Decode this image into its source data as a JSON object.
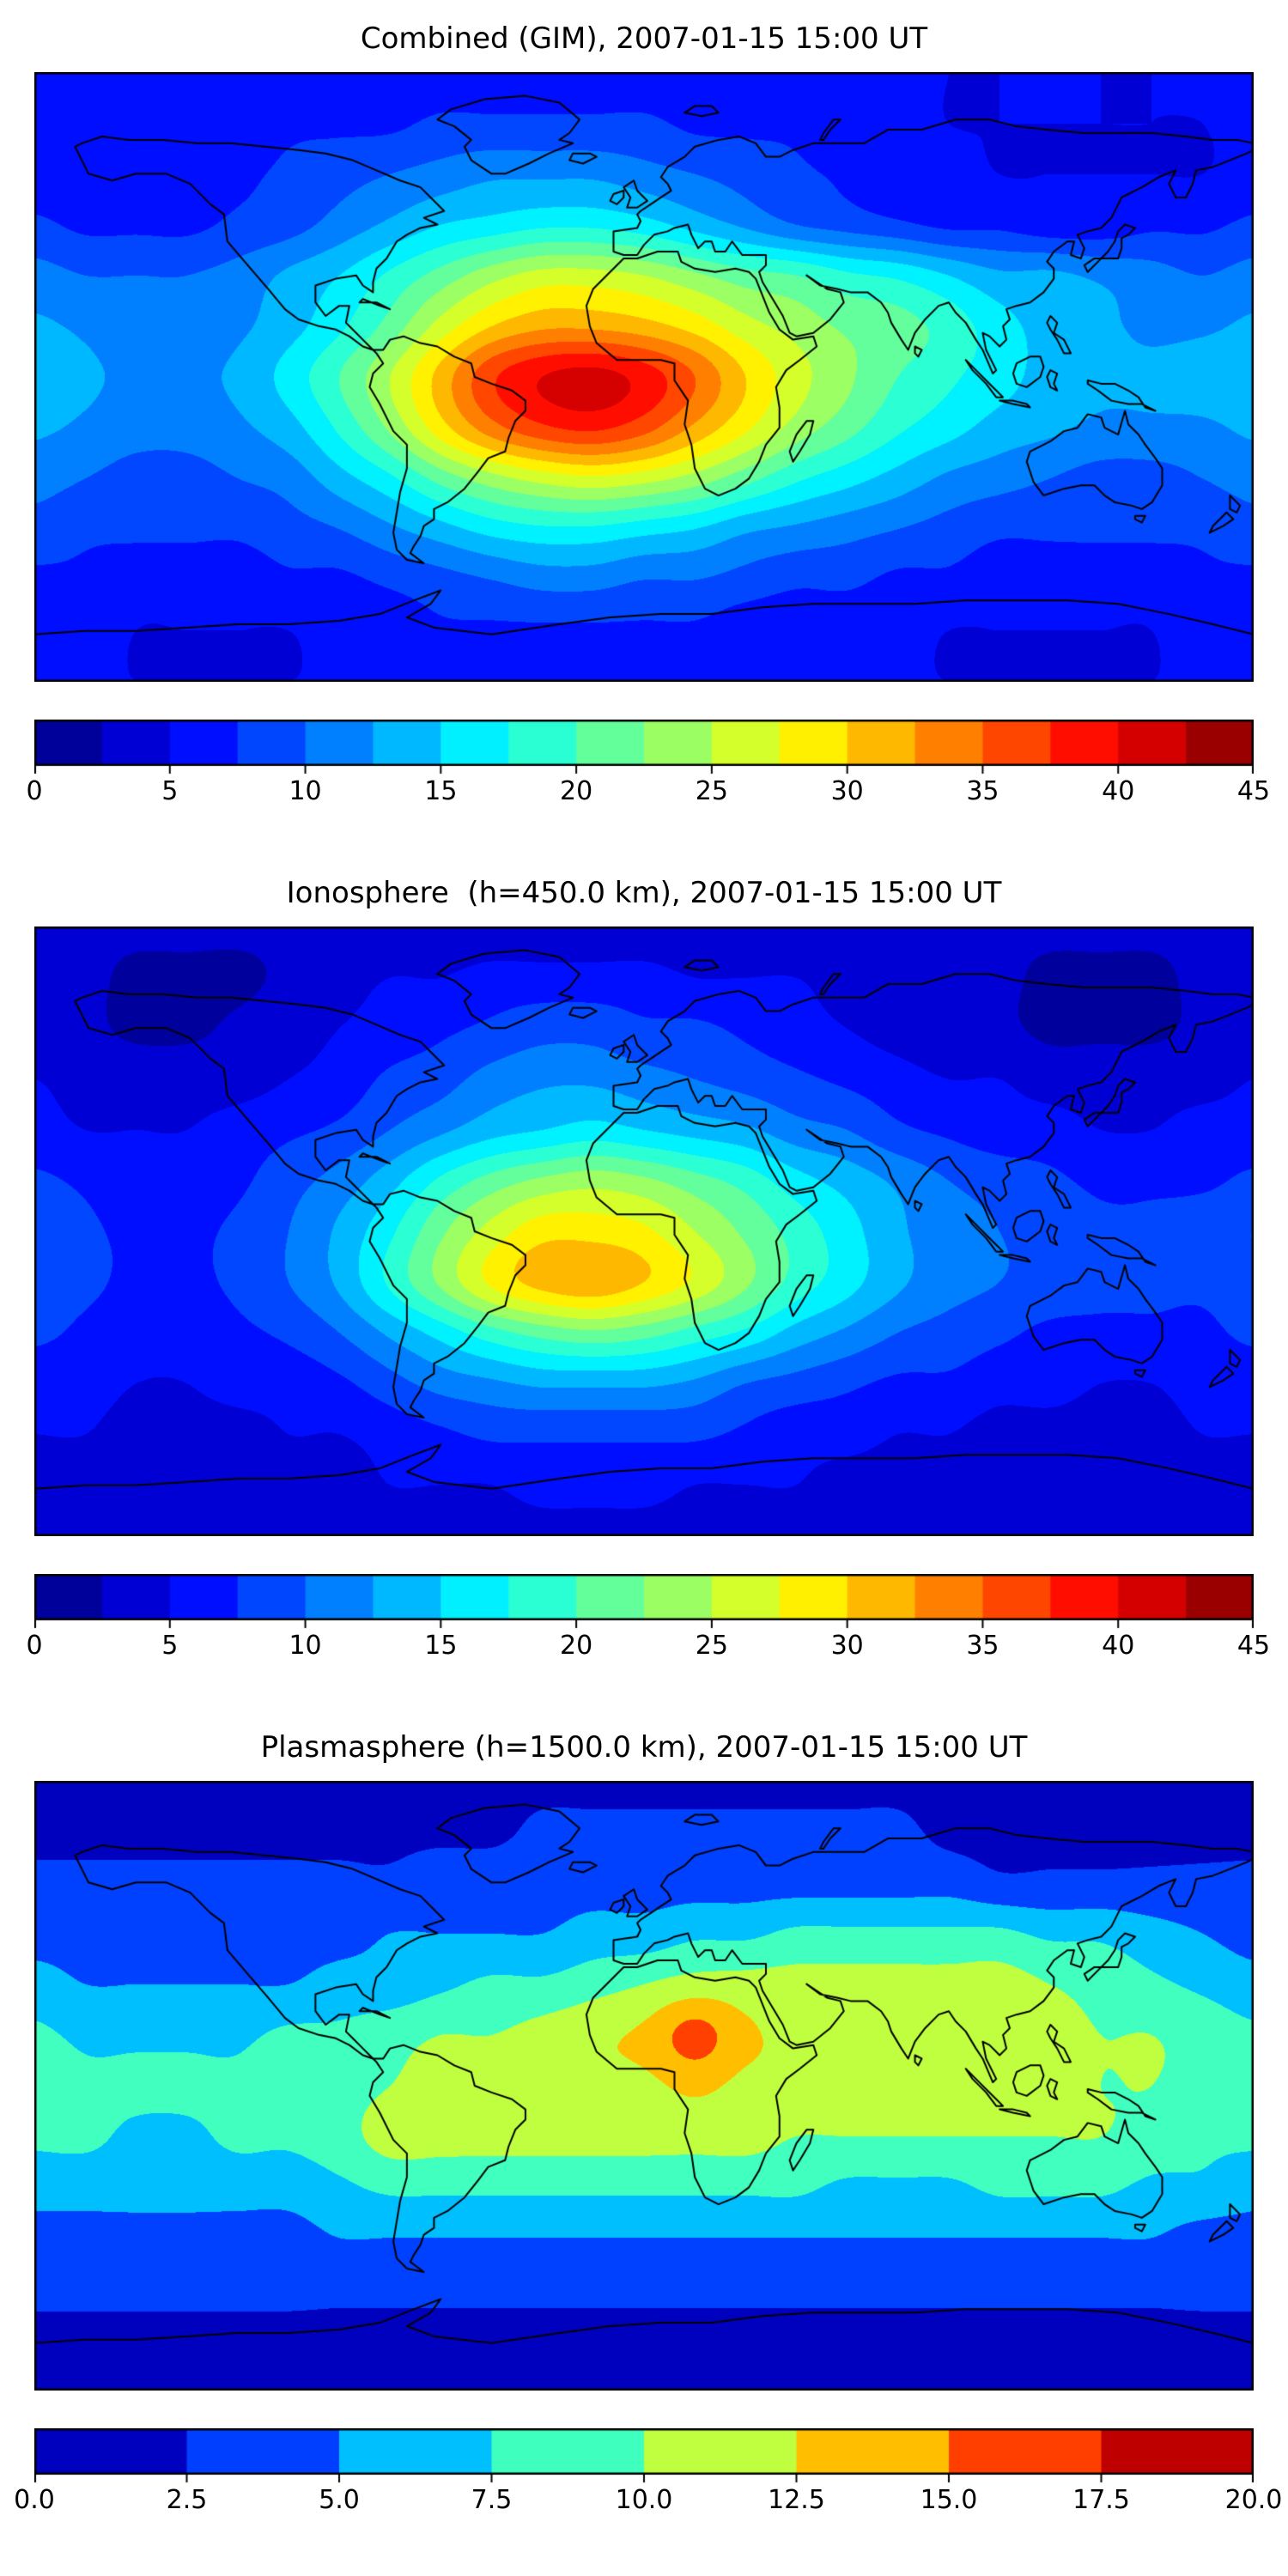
{
  "figure": {
    "background": "#ffffff",
    "coastline_color": "#000000"
  },
  "chart_data": [
    {
      "type": "heatmap",
      "title": "Combined (GIM), 2007-01-15 15:00 UT",
      "colormap": "jet",
      "coastline_color": "#000000",
      "levels": {
        "min": 0,
        "max": 45,
        "count": 18
      },
      "colorbar": {
        "tick_values": [
          0,
          5,
          10,
          15,
          20,
          25,
          30,
          35,
          40,
          45
        ],
        "tick_labels": [
          "0",
          "5",
          "10",
          "15",
          "20",
          "25",
          "30",
          "35",
          "40",
          "45"
        ]
      },
      "grid": {
        "lon_min": -180,
        "lon_max": 180,
        "lon_step": 15,
        "lat_min": -90,
        "lat_max": 90,
        "lat_step": 15
      },
      "values": [
        [
          6,
          6,
          6,
          6,
          6,
          6,
          6,
          6,
          6,
          6,
          6,
          6,
          6,
          6,
          6,
          6,
          6,
          6,
          5,
          5,
          5,
          5,
          5,
          6,
          6
        ],
        [
          6,
          6,
          6,
          6,
          6,
          7,
          7,
          7,
          8,
          8,
          8,
          8,
          8,
          7,
          7,
          7,
          6,
          6,
          5,
          5,
          5,
          5,
          5,
          5,
          6
        ],
        [
          6,
          6,
          6,
          7,
          7,
          8,
          9,
          10,
          11,
          12,
          12,
          12,
          11,
          10,
          9,
          8,
          7,
          6,
          6,
          5,
          5,
          5,
          5,
          5,
          6
        ],
        [
          8,
          7,
          7,
          7,
          8,
          9,
          11,
          13,
          15,
          16,
          17,
          17,
          16,
          14,
          12,
          10,
          9,
          8,
          7,
          7,
          6,
          6,
          7,
          7,
          8
        ],
        [
          11,
          10,
          10,
          10,
          11,
          13,
          15,
          18,
          21,
          24,
          26,
          26,
          25,
          23,
          21,
          20,
          18,
          17,
          15,
          13,
          13,
          12,
          11,
          10,
          11
        ],
        [
          13,
          12,
          11,
          11,
          12,
          14,
          17,
          21,
          26,
          30,
          32,
          32,
          31,
          29,
          26,
          24,
          22,
          21,
          19,
          16,
          14,
          13,
          12,
          12,
          13
        ],
        [
          15,
          13,
          12,
          12,
          13,
          16,
          20,
          25,
          31,
          37,
          40,
          41,
          39,
          35,
          30,
          26,
          23,
          20,
          18,
          16,
          14,
          13,
          13,
          14,
          15
        ],
        [
          13,
          12,
          11,
          11,
          12,
          14,
          18,
          23,
          29,
          34,
          37,
          38,
          36,
          32,
          28,
          24,
          21,
          18,
          16,
          14,
          13,
          12,
          12,
          12,
          13
        ],
        [
          11,
          10,
          9,
          9,
          10,
          11,
          14,
          17,
          21,
          24,
          26,
          27,
          26,
          24,
          21,
          18,
          16,
          14,
          12,
          11,
          10,
          9,
          9,
          10,
          11
        ],
        [
          9,
          8,
          8,
          8,
          8,
          9,
          10,
          12,
          14,
          16,
          17,
          17,
          16,
          15,
          13,
          12,
          11,
          10,
          9,
          8,
          8,
          8,
          8,
          8,
          9
        ],
        [
          7,
          7,
          6,
          6,
          6,
          7,
          7,
          8,
          9,
          10,
          11,
          11,
          10,
          10,
          9,
          8,
          8,
          7,
          7,
          6,
          6,
          6,
          6,
          7,
          7
        ],
        [
          6,
          6,
          5,
          5,
          5,
          5,
          6,
          6,
          7,
          7,
          7,
          7,
          7,
          7,
          6,
          6,
          6,
          6,
          5,
          5,
          5,
          5,
          5,
          6,
          6
        ],
        [
          5,
          5,
          5,
          5,
          5,
          5,
          5,
          5,
          5,
          5,
          5,
          5,
          5,
          5,
          5,
          5,
          5,
          5,
          5,
          5,
          5,
          5,
          5,
          5,
          5
        ]
      ]
    },
    {
      "type": "heatmap",
      "title": "Ionosphere  (h=450.0 km), 2007-01-15 15:00 UT",
      "colormap": "jet",
      "coastline_color": "#000000",
      "levels": {
        "min": 0,
        "max": 45,
        "count": 18
      },
      "colorbar": {
        "tick_values": [
          0,
          5,
          10,
          15,
          20,
          25,
          30,
          35,
          40,
          45
        ],
        "tick_labels": [
          "0",
          "5",
          "10",
          "15",
          "20",
          "25",
          "30",
          "35",
          "40",
          "45"
        ]
      },
      "grid": {
        "lon_min": -180,
        "lon_max": 180,
        "lon_step": 15,
        "lat_min": -90,
        "lat_max": 90,
        "lat_step": 15
      },
      "values": [
        [
          3,
          3,
          3,
          3,
          3,
          3,
          3,
          3,
          3,
          3,
          3,
          3,
          3,
          3,
          3,
          3,
          3,
          3,
          3,
          3,
          3,
          3,
          3,
          3,
          3
        ],
        [
          3,
          3,
          2,
          2,
          2,
          3,
          4,
          5,
          5,
          6,
          6,
          6,
          6,
          5,
          5,
          5,
          4,
          4,
          3,
          3,
          2,
          2,
          2,
          3,
          3
        ],
        [
          3,
          3,
          2,
          2,
          3,
          4,
          5,
          6,
          7,
          8,
          9,
          9,
          8,
          8,
          7,
          6,
          5,
          4,
          3,
          3,
          2,
          2,
          2,
          3,
          3
        ],
        [
          5,
          4,
          4,
          4,
          4,
          5,
          6,
          8,
          9,
          11,
          12,
          12,
          11,
          10,
          9,
          8,
          7,
          6,
          5,
          5,
          4,
          4,
          4,
          4,
          5
        ],
        [
          6,
          5,
          5,
          5,
          6,
          7,
          8,
          10,
          12,
          14,
          15,
          16,
          15,
          14,
          13,
          11,
          10,
          8,
          7,
          6,
          6,
          5,
          5,
          6,
          6
        ],
        [
          8,
          7,
          6,
          6,
          7,
          9,
          11,
          14,
          18,
          21,
          23,
          24,
          23,
          21,
          19,
          16,
          14,
          12,
          10,
          9,
          8,
          7,
          7,
          7,
          8
        ],
        [
          10,
          8,
          7,
          7,
          8,
          10,
          13,
          17,
          22,
          26,
          29,
          29,
          28,
          25,
          22,
          19,
          16,
          13,
          11,
          10,
          9,
          8,
          8,
          9,
          10
        ],
        [
          9,
          8,
          7,
          7,
          8,
          10,
          13,
          18,
          23,
          28,
          31,
          32,
          30,
          27,
          23,
          19,
          16,
          13,
          11,
          10,
          9,
          8,
          8,
          8,
          9
        ],
        [
          8,
          7,
          6,
          6,
          7,
          8,
          10,
          13,
          16,
          19,
          21,
          22,
          21,
          19,
          17,
          14,
          12,
          10,
          9,
          8,
          7,
          7,
          7,
          7,
          8
        ],
        [
          6,
          6,
          5,
          5,
          6,
          6,
          7,
          9,
          11,
          12,
          13,
          13,
          13,
          12,
          10,
          9,
          8,
          7,
          7,
          6,
          6,
          5,
          5,
          6,
          6
        ],
        [
          5,
          5,
          4,
          4,
          4,
          5,
          5,
          6,
          7,
          8,
          8,
          8,
          8,
          8,
          7,
          6,
          6,
          5,
          5,
          4,
          4,
          4,
          4,
          5,
          5
        ],
        [
          4,
          4,
          4,
          4,
          4,
          4,
          4,
          5,
          5,
          5,
          6,
          6,
          6,
          5,
          5,
          5,
          4,
          4,
          4,
          4,
          4,
          4,
          4,
          4,
          4
        ],
        [
          4,
          4,
          4,
          4,
          4,
          4,
          4,
          4,
          4,
          4,
          4,
          4,
          4,
          4,
          4,
          4,
          4,
          4,
          4,
          4,
          4,
          4,
          4,
          4,
          4
        ]
      ]
    },
    {
      "type": "heatmap",
      "title": "Plasmasphere (h=1500.0 km), 2007-01-15 15:00 UT",
      "colormap": "jet",
      "coastline_color": "#000000",
      "levels": {
        "min": 0,
        "max": 20,
        "count": 8
      },
      "colorbar": {
        "tick_values": [
          0,
          2.5,
          5,
          7.5,
          10,
          12.5,
          15,
          17.5,
          20
        ],
        "tick_labels": [
          "0.0",
          "2.5",
          "5.0",
          "7.5",
          "10.0",
          "12.5",
          "15.0",
          "17.5",
          "20.0"
        ]
      },
      "grid": {
        "lon_min": -180,
        "lon_max": 180,
        "lon_step": 15,
        "lat_min": -90,
        "lat_max": 90,
        "lat_step": 15
      },
      "values": [
        [
          2,
          2,
          2,
          2,
          2,
          2,
          2,
          2,
          2,
          2,
          2,
          2,
          2,
          2,
          2,
          2,
          2,
          2,
          2,
          2,
          2,
          2,
          2,
          2,
          2
        ],
        [
          2,
          2,
          2,
          2,
          2,
          2,
          2,
          2,
          2,
          2,
          3,
          3,
          3,
          3,
          3,
          3,
          3,
          3,
          2,
          2,
          2,
          2,
          2,
          2,
          2
        ],
        [
          3,
          3,
          3,
          3,
          3,
          3,
          3,
          3,
          4,
          4,
          4,
          4,
          4,
          4,
          4,
          4,
          4,
          4,
          4,
          3,
          3,
          3,
          3,
          3,
          3
        ],
        [
          4,
          4,
          4,
          4,
          4,
          4,
          4,
          5,
          5,
          5,
          5,
          6,
          6,
          7,
          7,
          8,
          8,
          8,
          8,
          8,
          7,
          7,
          6,
          5,
          4
        ],
        [
          6,
          5,
          5,
          5,
          5,
          5,
          6,
          6,
          7,
          8,
          8,
          9,
          10,
          11,
          11,
          11,
          11,
          11,
          11,
          11,
          10,
          9,
          8,
          7,
          6
        ],
        [
          8,
          7,
          7,
          7,
          7,
          8,
          8,
          9,
          10,
          10,
          11,
          12,
          13,
          16,
          13,
          12,
          12,
          12,
          12,
          11,
          11,
          10,
          10,
          9,
          8
        ],
        [
          9,
          8,
          8,
          8,
          8,
          9,
          9,
          10,
          11,
          12,
          12,
          12,
          12,
          13,
          12,
          12,
          12,
          12,
          12,
          11,
          11,
          10,
          10,
          9,
          9
        ],
        [
          8,
          8,
          7,
          7,
          8,
          8,
          9,
          11,
          11,
          11,
          11,
          11,
          11,
          11,
          11,
          10,
          10,
          10,
          10,
          10,
          10,
          10,
          9,
          8,
          8
        ],
        [
          6,
          6,
          6,
          6,
          6,
          6,
          7,
          8,
          8,
          8,
          8,
          8,
          8,
          8,
          8,
          8,
          7,
          7,
          7,
          8,
          8,
          8,
          7,
          7,
          6
        ],
        [
          4,
          4,
          4,
          4,
          4,
          4,
          5,
          5,
          5,
          5,
          5,
          5,
          5,
          5,
          5,
          5,
          5,
          5,
          5,
          5,
          5,
          5,
          5,
          4,
          4
        ],
        [
          3,
          3,
          3,
          3,
          3,
          3,
          3,
          3,
          3,
          3,
          3,
          3,
          3,
          3,
          3,
          3,
          3,
          3,
          3,
          3,
          3,
          3,
          3,
          3,
          3
        ],
        [
          2,
          2,
          2,
          2,
          2,
          2,
          2,
          2,
          2,
          2,
          2,
          2,
          2,
          2,
          2,
          2,
          2,
          2,
          2,
          2,
          2,
          2,
          2,
          2,
          2
        ],
        [
          2,
          2,
          2,
          2,
          2,
          2,
          2,
          2,
          2,
          2,
          2,
          2,
          2,
          2,
          2,
          2,
          2,
          2,
          2,
          2,
          2,
          2,
          2,
          2,
          2
        ]
      ]
    }
  ]
}
